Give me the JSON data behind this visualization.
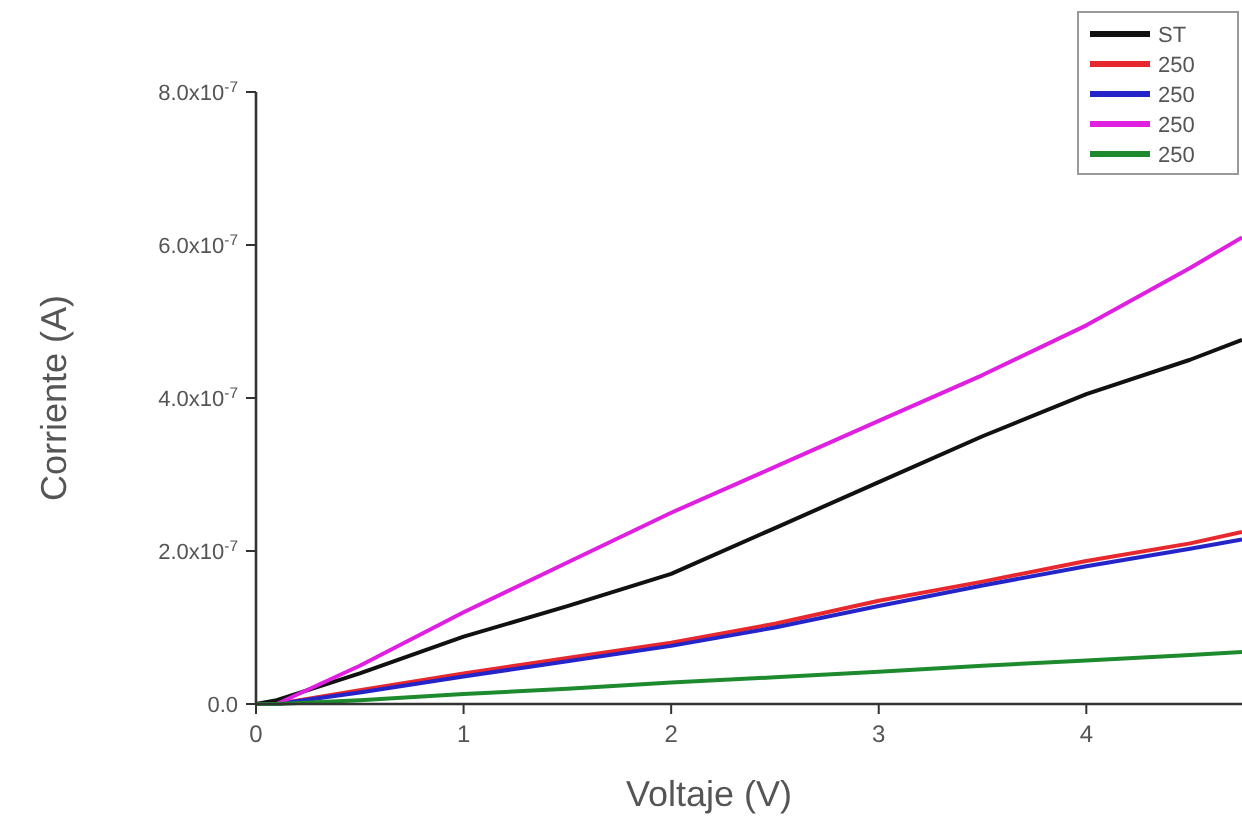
{
  "chart_data": {
    "type": "line",
    "xlabel": "Voltaje (V)",
    "ylabel": "Corriente (A)",
    "x": [
      0,
      0.1,
      0.5,
      1,
      1.5,
      2,
      2.5,
      3,
      3.5,
      4,
      4.5,
      4.75
    ],
    "series": [
      {
        "name": "ST",
        "color": "#111111",
        "values": [
          0,
          5e-09,
          4e-08,
          8.8e-08,
          1.28e-07,
          1.7e-07,
          2.3e-07,
          2.9e-07,
          3.5e-07,
          4.05e-07,
          4.5e-07,
          4.76e-07
        ]
      },
      {
        "name": "250",
        "color": "#e8282f",
        "values": [
          0,
          0,
          1.8e-08,
          4e-08,
          6e-08,
          8e-08,
          1.05e-07,
          1.35e-07,
          1.6e-07,
          1.87e-07,
          2.1e-07,
          2.25e-07
        ]
      },
      {
        "name": "250",
        "color": "#2424c8",
        "values": [
          0,
          0,
          1.5e-08,
          3.6e-08,
          5.6e-08,
          7.6e-08,
          1e-07,
          1.28e-07,
          1.55e-07,
          1.8e-07,
          2.03e-07,
          2.15e-07
        ]
      },
      {
        "name": "250",
        "color": "#e020e0",
        "values": [
          0,
          0,
          5e-08,
          1.2e-07,
          1.85e-07,
          2.5e-07,
          3.1e-07,
          3.7e-07,
          4.3e-07,
          4.95e-07,
          5.7e-07,
          6.1e-07
        ]
      },
      {
        "name": "250",
        "color": "#1e8a2e",
        "values": [
          0,
          0,
          5e-09,
          1.3e-08,
          2e-08,
          2.8e-08,
          3.5e-08,
          4.2e-08,
          5e-08,
          5.7e-08,
          6.4e-08,
          6.8e-08
        ]
      }
    ],
    "xlim": [
      0,
      4.75
    ],
    "xticks": [
      0,
      1,
      2,
      3,
      4
    ],
    "ylim": [
      0,
      8e-07
    ],
    "yticks": [
      {
        "value": 0,
        "label": "0.0"
      },
      {
        "value": 2e-07,
        "label": "2.0x10$^{-7}$"
      },
      {
        "value": 4e-07,
        "label": "4.0x10$^{-7}$"
      },
      {
        "value": 6e-07,
        "label": "6.0x10$^{-7}$"
      },
      {
        "value": 8e-07,
        "label": "8.0x10$^{-7}$"
      }
    ],
    "legend": "top right",
    "grid": false,
    "line_style": "solid"
  }
}
